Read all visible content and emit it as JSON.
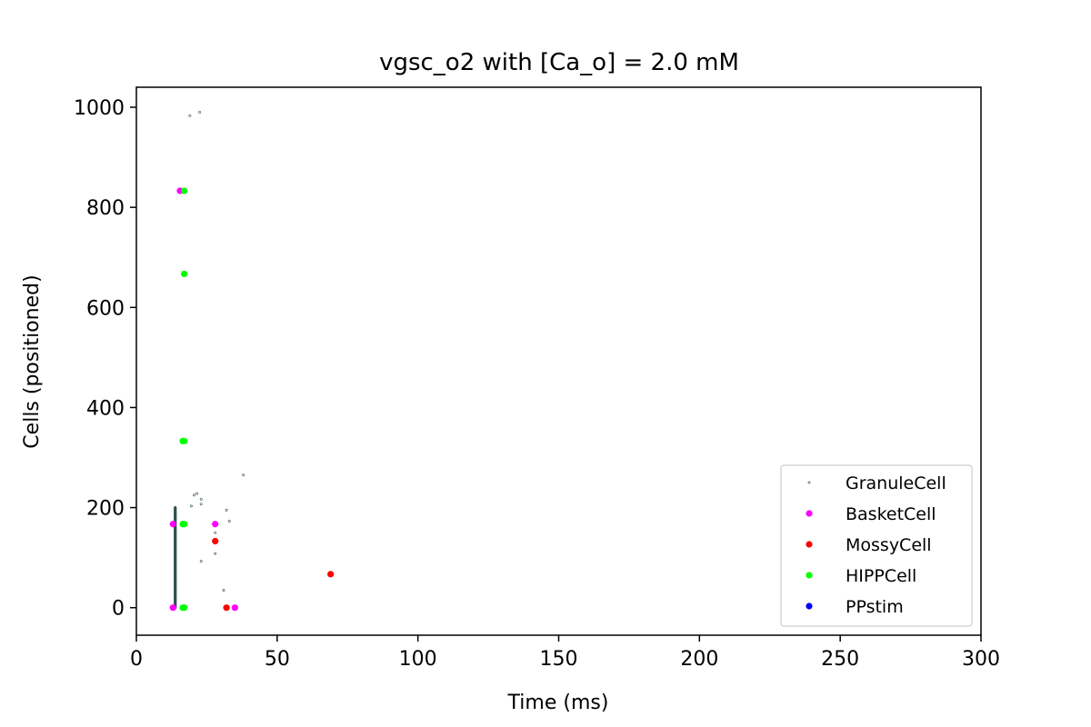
{
  "chart_data": {
    "type": "scatter",
    "title": "vgsc_o2 with [Ca_o] = 2.0 mM",
    "xlabel": "Time (ms)",
    "ylabel": "Cells (positioned)",
    "xlim": [
      0,
      300
    ],
    "ylim": [
      -55,
      1040
    ],
    "xticks": [
      0,
      50,
      100,
      150,
      200,
      250,
      300
    ],
    "yticks": [
      0,
      200,
      400,
      600,
      800,
      1000
    ],
    "grid": false,
    "legend_position": "lower-right",
    "series": [
      {
        "name": "GranuleCell",
        "color": "#2f4f4f",
        "marker": "tiny",
        "points": [
          [
            19,
            983
          ],
          [
            22.5,
            990
          ],
          [
            20.5,
            225
          ],
          [
            21.5,
            228
          ],
          [
            23,
            217
          ],
          [
            23,
            207
          ],
          [
            19.5,
            203
          ],
          [
            38,
            265
          ],
          [
            32,
            195
          ],
          [
            33,
            173
          ],
          [
            28,
            150
          ],
          [
            28,
            108
          ],
          [
            23,
            93
          ],
          [
            31,
            35
          ]
        ],
        "column": {
          "x": 13.8,
          "y_from": 0,
          "y_to": 200,
          "step": 2
        }
      },
      {
        "name": "BasketCell",
        "color": "#ff00ff",
        "marker": "dot",
        "points": [
          [
            15.5,
            833
          ],
          [
            13,
            167
          ],
          [
            28,
            167
          ],
          [
            13,
            0
          ],
          [
            35,
            0
          ]
        ]
      },
      {
        "name": "MossyCell",
        "color": "#ff0000",
        "marker": "dot",
        "points": [
          [
            28,
            133
          ],
          [
            69,
            67
          ],
          [
            32,
            0
          ]
        ]
      },
      {
        "name": "HIPPCell",
        "color": "#00ff00",
        "marker": "dot",
        "points": [
          [
            17,
            833
          ],
          [
            17,
            667
          ],
          [
            16.5,
            333
          ],
          [
            17,
            333
          ],
          [
            16.5,
            167
          ],
          [
            17,
            167
          ],
          [
            16.5,
            0
          ],
          [
            17,
            0
          ]
        ]
      },
      {
        "name": "PPstim",
        "color": "#0000ff",
        "marker": "dot",
        "points": []
      }
    ]
  }
}
